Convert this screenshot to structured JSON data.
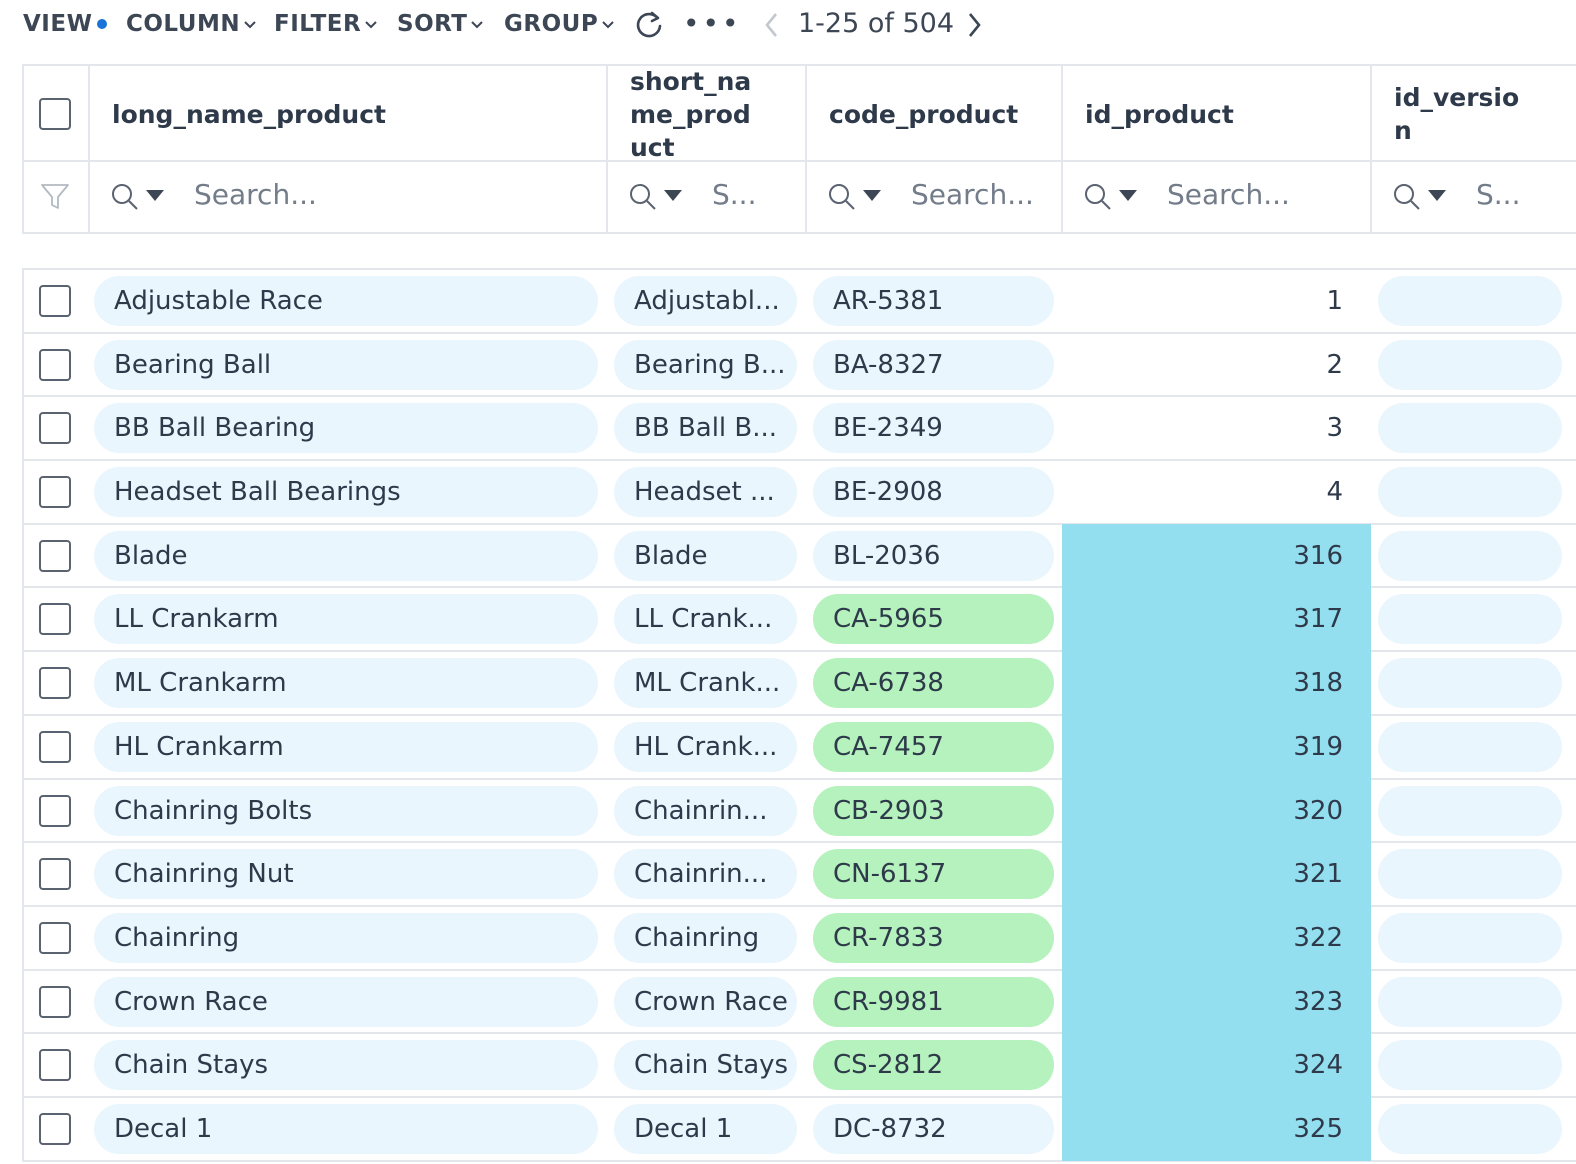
{
  "toolbar": {
    "view": "VIEW",
    "column": "COLUMN",
    "filter": "FILTER",
    "sort": "SORT",
    "group": "GROUP",
    "more": "•••",
    "pager": "1-25 of 504",
    "accent": "#1a73d9"
  },
  "columns": [
    {
      "label": "long_name_product",
      "placeholder": "Search..."
    },
    {
      "label": "short_na\nme_prod\nuct",
      "placeholder": "S..."
    },
    {
      "label": "code_product",
      "placeholder": "Search..."
    },
    {
      "label": "id_product",
      "placeholder": "Search..."
    },
    {
      "label": "id_versio\nn",
      "placeholder": "S..."
    }
  ],
  "rows": [
    {
      "long": "Adjustable Race",
      "short": "Adjustabl...",
      "code": "AR-5381",
      "id": "1",
      "code_hl": false,
      "id_hl": false
    },
    {
      "long": "Bearing Ball",
      "short": "Bearing B...",
      "code": "BA-8327",
      "id": "2",
      "code_hl": false,
      "id_hl": false
    },
    {
      "long": "BB Ball Bearing",
      "short": "BB Ball B...",
      "code": "BE-2349",
      "id": "3",
      "code_hl": false,
      "id_hl": false
    },
    {
      "long": "Headset Ball Bearings",
      "short": "Headset ...",
      "code": "BE-2908",
      "id": "4",
      "code_hl": false,
      "id_hl": false
    },
    {
      "long": "Blade",
      "short": "Blade",
      "code": "BL-2036",
      "id": "316",
      "code_hl": false,
      "id_hl": true
    },
    {
      "long": "LL Crankarm",
      "short": "LL Crank...",
      "code": "CA-5965",
      "id": "317",
      "code_hl": true,
      "id_hl": true
    },
    {
      "long": "ML Crankarm",
      "short": "ML Crank...",
      "code": "CA-6738",
      "id": "318",
      "code_hl": true,
      "id_hl": true
    },
    {
      "long": "HL Crankarm",
      "short": "HL Crank...",
      "code": "CA-7457",
      "id": "319",
      "code_hl": true,
      "id_hl": true
    },
    {
      "long": "Chainring Bolts",
      "short": "Chainrin...",
      "code": "CB-2903",
      "id": "320",
      "code_hl": true,
      "id_hl": true
    },
    {
      "long": "Chainring Nut",
      "short": "Chainrin...",
      "code": "CN-6137",
      "id": "321",
      "code_hl": true,
      "id_hl": true
    },
    {
      "long": "Chainring",
      "short": "Chainring",
      "code": "CR-7833",
      "id": "322",
      "code_hl": true,
      "id_hl": true
    },
    {
      "long": "Crown Race",
      "short": "Crown Race",
      "code": "CR-9981",
      "id": "323",
      "code_hl": true,
      "id_hl": true
    },
    {
      "long": "Chain Stays",
      "short": "Chain Stays",
      "code": "CS-2812",
      "id": "324",
      "code_hl": true,
      "id_hl": true
    },
    {
      "long": "Decal 1",
      "short": "Decal 1",
      "code": "DC-8732",
      "id": "325",
      "code_hl": false,
      "id_hl": true
    }
  ],
  "colors": {
    "pill": "#eaf6fd",
    "code_highlight": "#b5f2bd",
    "id_highlight": "#93dff0"
  }
}
